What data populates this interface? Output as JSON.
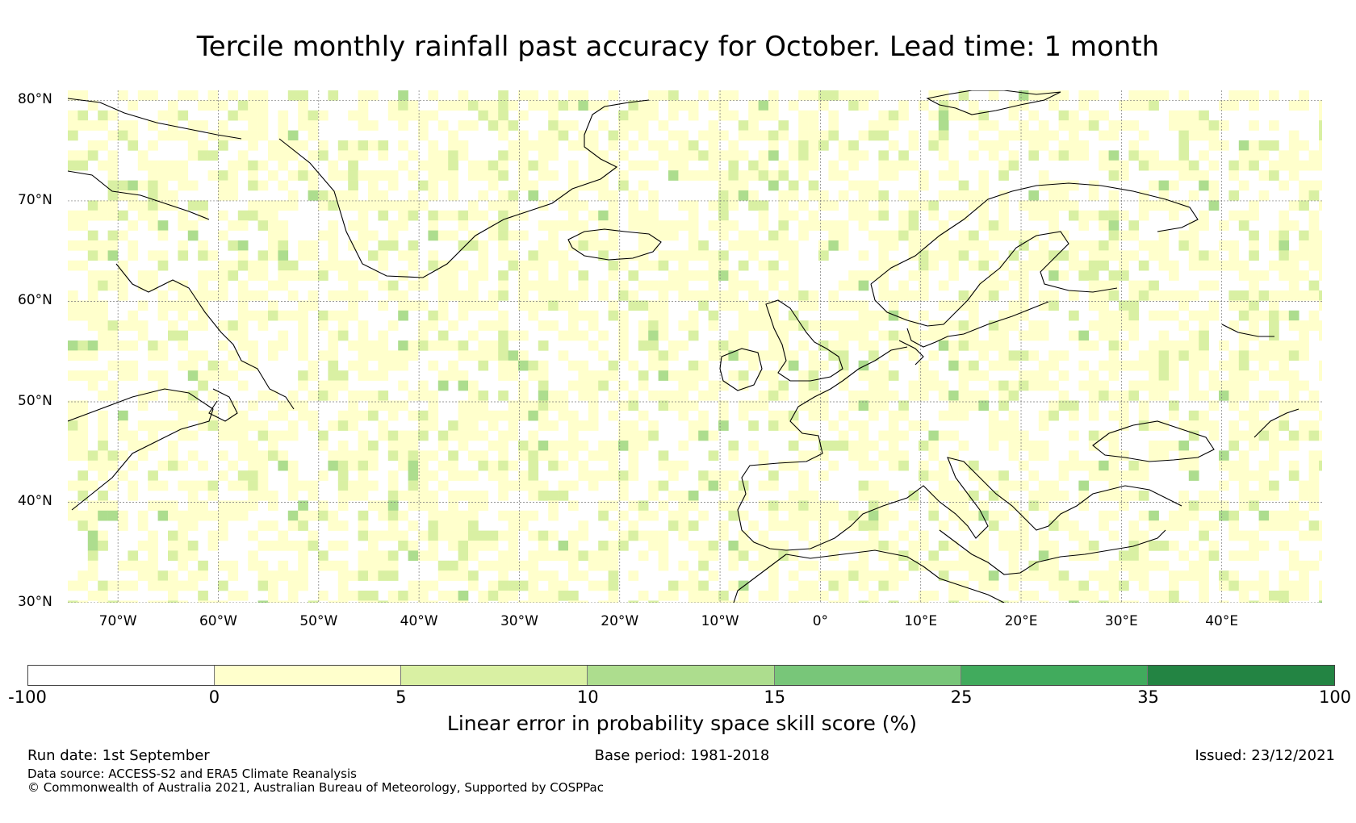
{
  "title": "Tercile monthly rainfall past accuracy for October. Lead time: 1 month",
  "map": {
    "lon_range": [
      -75,
      50
    ],
    "lat_range": [
      30,
      81
    ],
    "lat_labels": [
      "80°N",
      "70°N",
      "60°N",
      "50°N",
      "40°N",
      "30°N"
    ],
    "lat_values": [
      80,
      70,
      60,
      50,
      40,
      30
    ],
    "lon_labels": [
      "70°W",
      "60°W",
      "50°W",
      "40°W",
      "30°W",
      "20°W",
      "10°W",
      "0°",
      "10°E",
      "20°E",
      "30°E",
      "40°E"
    ],
    "lon_values": [
      -70,
      -60,
      -50,
      -40,
      -30,
      -20,
      -10,
      0,
      10,
      20,
      30,
      40
    ]
  },
  "colorbar": {
    "ticks": [
      "-100",
      "0",
      "5",
      "10",
      "15",
      "25",
      "35",
      "100"
    ],
    "colors": [
      "#ffffff",
      "#ffffcc",
      "#d9f0a3",
      "#addd8e",
      "#78c679",
      "#41ab5d",
      "#238443"
    ],
    "label": "Linear error in probability space skill score (%)"
  },
  "footer": {
    "run_date": "Run date: 1st September",
    "base_period": "Base period: 1981-2018",
    "issued": "Issued: 23/12/2021",
    "data_source": "Data source: ACCESS-S2 and ERA5 Climate Reanalysis",
    "copyright": "© Commonwealth of Australia 2021, Australian Bureau of Meteorology, Supported by COSPPac"
  }
}
